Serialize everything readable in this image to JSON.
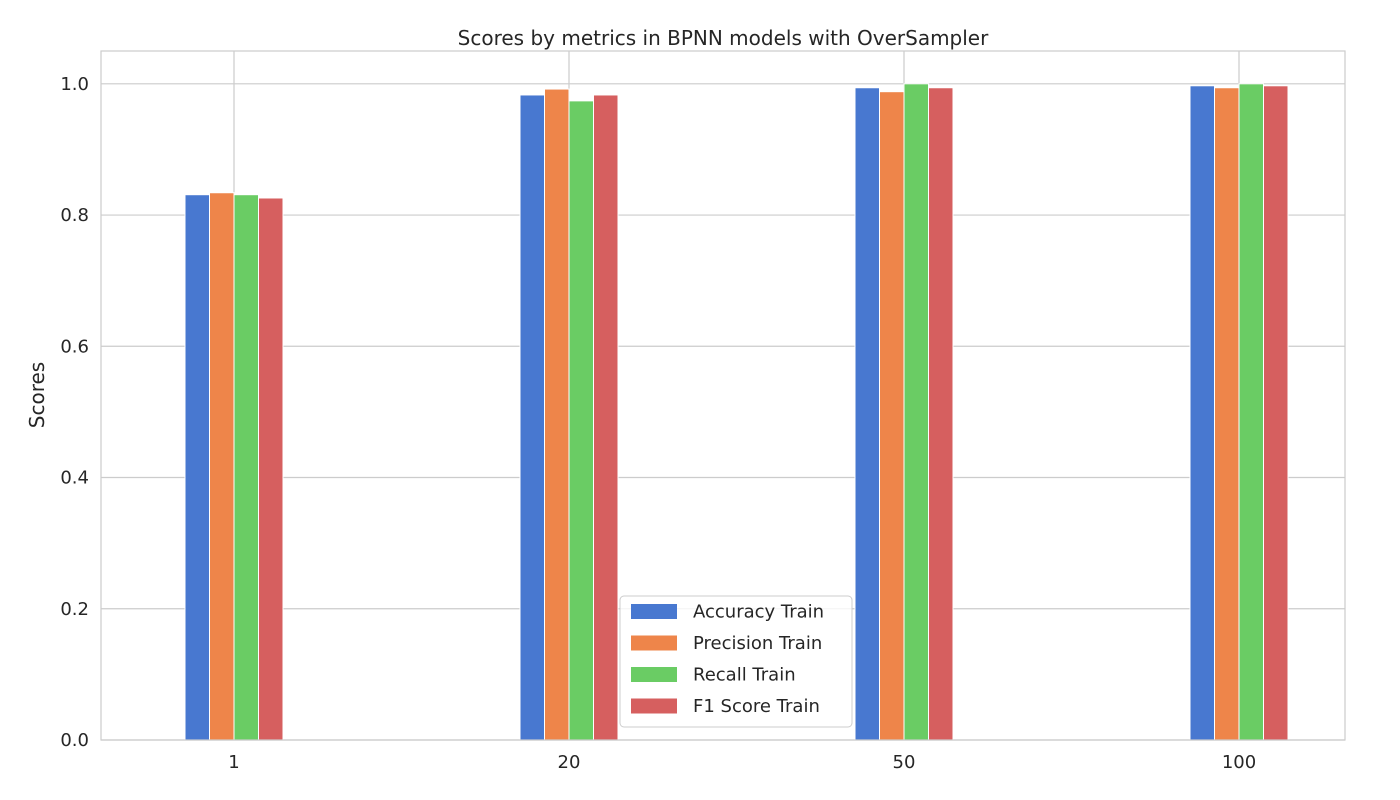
{
  "chart_data": {
    "type": "bar",
    "title": "Scores by metrics in BPNN models with OverSampler",
    "xlabel": "",
    "ylabel": "Scores",
    "categories": [
      "1",
      "20",
      "50",
      "100"
    ],
    "ylim": [
      0,
      1.05
    ],
    "yticks": [
      "0.0",
      "0.2",
      "0.4",
      "0.6",
      "0.8",
      "1.0"
    ],
    "grid": true,
    "legend_position": "lower-center",
    "series": [
      {
        "name": "Accuracy Train",
        "color": "#4878d0",
        "values": [
          0.831,
          0.983,
          0.994,
          0.997
        ]
      },
      {
        "name": "Precision Train",
        "color": "#ee854a",
        "values": [
          0.834,
          0.992,
          0.988,
          0.994
        ]
      },
      {
        "name": "Recall Train",
        "color": "#6acc64",
        "values": [
          0.831,
          0.974,
          1.0,
          1.0
        ]
      },
      {
        "name": "F1 Score Train",
        "color": "#d65f5f",
        "values": [
          0.826,
          0.983,
          0.994,
          0.997
        ]
      }
    ]
  }
}
